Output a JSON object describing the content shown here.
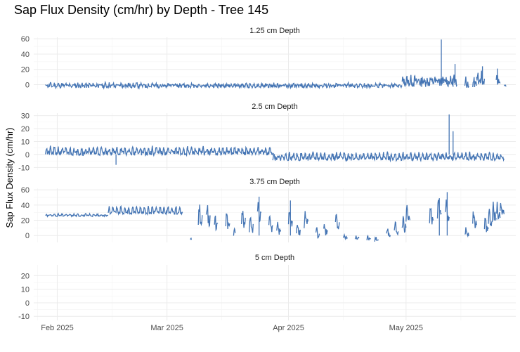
{
  "chart_data": {
    "type": "line",
    "title": "Sap Flux Density (cm/hr) by Depth - Tree 145",
    "ylabel": "Sap Flux Density (cm/hr)",
    "xlabel": "",
    "x_ticks": [
      "Feb 2025",
      "Mar 2025",
      "Apr 2025",
      "May 2025"
    ],
    "xlim": [
      "2025-01-26",
      "2025-05-29"
    ],
    "grid": true,
    "line_color": "#4575b4",
    "facets": [
      {
        "title": "1.25 cm Depth",
        "ylim": [
          -6,
          62
        ],
        "yticks": [
          0,
          20,
          40,
          60
        ],
        "series": [
          {
            "start": "2025-01-29",
            "end": "2025-02-28",
            "baseline": -2,
            "amp": 3,
            "noise": 2.5,
            "seed": 11
          },
          {
            "start": "2025-02-28",
            "end": "2025-04-30",
            "baseline": -2,
            "amp": 2.5,
            "noise": 2.2,
            "seed": 12
          },
          {
            "start": "2025-04-30",
            "end": "2025-05-13",
            "baseline": 3,
            "amp": 4,
            "noise": 6,
            "seed": 13
          }
        ],
        "segments": [
          {
            "start": "2025-05-13",
            "end": "2025-05-14",
            "baseline": 2,
            "amp": 8,
            "noise": 6,
            "seed": 14
          },
          {
            "start": "2025-05-16",
            "end": "2025-05-17",
            "baseline": 1,
            "amp": 5,
            "noise": 5,
            "seed": 15
          },
          {
            "start": "2025-05-18",
            "end": "2025-05-19",
            "baseline": 1,
            "amp": 6,
            "noise": 5,
            "seed": 16
          },
          {
            "start": "2025-05-19",
            "end": "2025-05-21",
            "baseline": 5,
            "amp": 8,
            "noise": 6,
            "seed": 17
          },
          {
            "start": "2025-05-24",
            "end": "2025-05-25",
            "baseline": 4,
            "amp": 7,
            "noise": 4,
            "seed": 18
          },
          {
            "start": "2025-05-26",
            "end": "2025-05-26.5",
            "baseline": -2,
            "amp": 1,
            "noise": 1,
            "seed": 19
          }
        ],
        "spikes": [
          {
            "date": "2025-05-10",
            "value": 59
          },
          {
            "date": "2025-05-13.5",
            "value": 27
          },
          {
            "date": "2025-05-20.5",
            "value": 24
          },
          {
            "date": "2025-05-24.3",
            "value": 21
          }
        ]
      },
      {
        "title": "2.5 cm Depth",
        "ylim": [
          -12,
          32
        ],
        "yticks": [
          -10,
          0,
          10,
          20,
          30
        ],
        "series": [
          {
            "start": "2025-01-29",
            "end": "2025-03-28",
            "baseline": 1,
            "amp": 4,
            "noise": 1.8,
            "seed": 21
          },
          {
            "start": "2025-03-28",
            "end": "2025-05-26",
            "baseline": -3,
            "amp": 3.5,
            "noise": 1.8,
            "seed": 22
          }
        ],
        "segments": [],
        "spikes": [
          {
            "date": "2025-02-16",
            "value": -8
          },
          {
            "date": "2025-05-12",
            "value": 31
          },
          {
            "date": "2025-05-13",
            "value": 18
          }
        ]
      },
      {
        "title": "3.75 cm Depth",
        "ylim": [
          -9,
          62
        ],
        "yticks": [
          0,
          20,
          40,
          60
        ],
        "series": [
          {
            "start": "2025-01-29",
            "end": "2025-02-14",
            "baseline": 26,
            "amp": 2,
            "noise": 1,
            "seed": 31
          },
          {
            "start": "2025-02-14",
            "end": "2025-03-05",
            "baseline": 30,
            "amp": 8,
            "noise": 2,
            "seed": 32
          }
        ],
        "segments": [
          {
            "start": "2025-03-07",
            "end": "2025-03-07.3",
            "baseline": -5,
            "amp": 1,
            "noise": 1,
            "seed": 33
          },
          {
            "start": "2025-03-09",
            "end": "2025-03-10",
            "baseline": 20,
            "amp": 18,
            "noise": 8,
            "seed": 34
          },
          {
            "start": "2025-03-11",
            "end": "2025-03-12",
            "baseline": 20,
            "amp": 18,
            "noise": 8,
            "seed": 35
          },
          {
            "start": "2025-03-13",
            "end": "2025-03-14",
            "baseline": 10,
            "amp": 14,
            "noise": 8,
            "seed": 36
          },
          {
            "start": "2025-03-16",
            "end": "2025-03-17",
            "baseline": 10,
            "amp": 15,
            "noise": 8,
            "seed": 37
          },
          {
            "start": "2025-03-18",
            "end": "2025-03-18.4",
            "baseline": 0,
            "amp": 6,
            "noise": 4,
            "seed": 38
          },
          {
            "start": "2025-03-20",
            "end": "2025-03-21",
            "baseline": 18,
            "amp": 15,
            "noise": 8,
            "seed": 39
          },
          {
            "start": "2025-03-22",
            "end": "2025-03-23",
            "baseline": 10,
            "amp": 15,
            "noise": 8,
            "seed": 40
          },
          {
            "start": "2025-03-24",
            "end": "2025-03-25",
            "baseline": 25,
            "amp": 18,
            "noise": 8,
            "seed": 41
          },
          {
            "start": "2025-03-27",
            "end": "2025-03-28",
            "baseline": 10,
            "amp": 12,
            "noise": 6,
            "seed": 42
          },
          {
            "start": "2025-03-29",
            "end": "2025-03-30",
            "baseline": 5,
            "amp": 8,
            "noise": 5,
            "seed": 43
          },
          {
            "start": "2025-04-01",
            "end": "2025-04-02",
            "baseline": 15,
            "amp": 20,
            "noise": 8,
            "seed": 44
          },
          {
            "start": "2025-04-03",
            "end": "2025-04-04",
            "baseline": 5,
            "amp": 10,
            "noise": 6,
            "seed": 45
          },
          {
            "start": "2025-04-05",
            "end": "2025-04-06",
            "baseline": 15,
            "amp": 15,
            "noise": 8,
            "seed": 46
          },
          {
            "start": "2025-04-08",
            "end": "2025-04-09",
            "baseline": 0,
            "amp": 8,
            "noise": 4,
            "seed": 47
          },
          {
            "start": "2025-04-10",
            "end": "2025-04-11",
            "baseline": 5,
            "amp": 10,
            "noise": 6,
            "seed": 48
          },
          {
            "start": "2025-04-13",
            "end": "2025-04-14",
            "baseline": 15,
            "amp": 16,
            "noise": 8,
            "seed": 49
          },
          {
            "start": "2025-04-15",
            "end": "2025-04-16",
            "baseline": -3,
            "amp": 4,
            "noise": 2,
            "seed": 50
          },
          {
            "start": "2025-04-18",
            "end": "2025-04-19",
            "baseline": -4,
            "amp": 3,
            "noise": 2,
            "seed": 51
          },
          {
            "start": "2025-04-21",
            "end": "2025-04-22",
            "baseline": -5,
            "amp": 3,
            "noise": 2,
            "seed": 52
          },
          {
            "start": "2025-04-23",
            "end": "2025-04-24",
            "baseline": -6,
            "amp": 3,
            "noise": 2,
            "seed": 53
          },
          {
            "start": "2025-04-26",
            "end": "2025-04-27",
            "baseline": 0,
            "amp": 8,
            "noise": 4,
            "seed": 54
          },
          {
            "start": "2025-04-28",
            "end": "2025-04-29",
            "baseline": 5,
            "amp": 12,
            "noise": 5,
            "seed": 55
          },
          {
            "start": "2025-04-30",
            "end": "2025-05-01",
            "baseline": 10,
            "amp": 12,
            "noise": 6,
            "seed": 56
          },
          {
            "start": "2025-05-01",
            "end": "2025-05-02",
            "baseline": 20,
            "amp": 14,
            "noise": 6,
            "seed": 57
          },
          {
            "start": "2025-05-07",
            "end": "2025-05-08",
            "baseline": 20,
            "amp": 18,
            "noise": 6,
            "seed": 58
          },
          {
            "start": "2025-05-09",
            "end": "2025-05-10",
            "baseline": 30,
            "amp": 18,
            "noise": 8,
            "seed": 59
          },
          {
            "start": "2025-05-11",
            "end": "2025-05-12",
            "baseline": 25,
            "amp": 20,
            "noise": 8,
            "seed": 60
          },
          {
            "start": "2025-05-16",
            "end": "2025-05-17",
            "baseline": 0,
            "amp": 8,
            "noise": 4,
            "seed": 61
          },
          {
            "start": "2025-05-18",
            "end": "2025-05-19",
            "baseline": 15,
            "amp": 15,
            "noise": 8,
            "seed": 62
          },
          {
            "start": "2025-05-21",
            "end": "2025-05-22",
            "baseline": 10,
            "amp": 15,
            "noise": 6,
            "seed": 63
          },
          {
            "start": "2025-05-22",
            "end": "2025-05-23",
            "baseline": 20,
            "amp": 15,
            "noise": 8,
            "seed": 64
          },
          {
            "start": "2025-05-23",
            "end": "2025-05-24",
            "baseline": 25,
            "amp": 16,
            "noise": 8,
            "seed": 65
          },
          {
            "start": "2025-05-24",
            "end": "2025-05-25",
            "baseline": 25,
            "amp": 14,
            "noise": 6,
            "seed": 66
          },
          {
            "start": "2025-05-25",
            "end": "2025-05-26",
            "baseline": 30,
            "amp": 12,
            "noise": 6,
            "seed": 67
          }
        ],
        "spikes": [
          {
            "date": "2025-03-24.5",
            "value": 51
          },
          {
            "date": "2025-04-01.5",
            "value": 46
          },
          {
            "date": "2025-05-11.5",
            "value": 57
          },
          {
            "date": "2025-05-09.5",
            "value": 49
          }
        ]
      },
      {
        "title": "5 cm Depth",
        "ylim": [
          -13,
          28
        ],
        "yticks": [
          -10,
          0,
          10,
          20
        ],
        "series": [],
        "segments": [],
        "spikes": []
      }
    ]
  }
}
